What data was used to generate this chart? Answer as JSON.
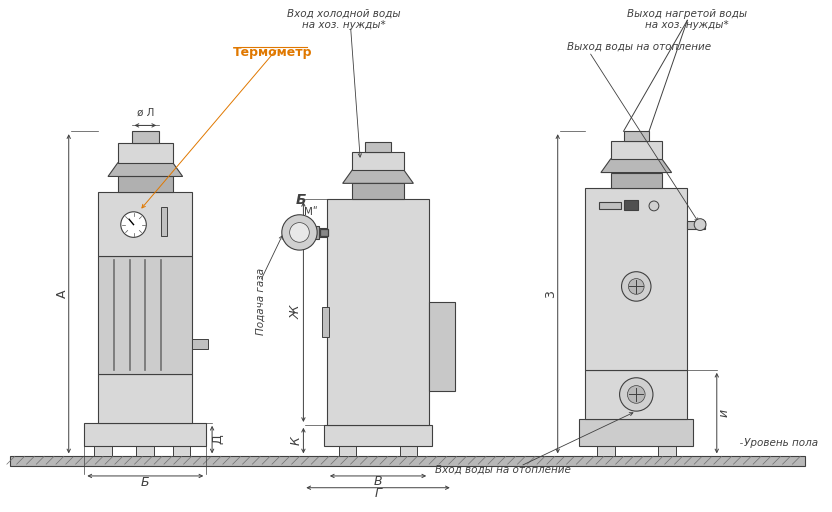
{
  "bg_color": "#ffffff",
  "boiler_fill": "#d8d8d8",
  "boiler_stroke": "#404040",
  "boiler_dark": "#909090",
  "ground_fill": "#b0b0b0",
  "annotations": {
    "thermometer_label": "Термометр",
    "podacha_gaza": "Подача газа",
    "vhod_holodnoy": "Вход холодной воды\nна хоз. нужды*",
    "vykhod_nagretoy": "Выход нагретой воды\nна хоз. нужды*",
    "vykhod_vody_otop": "Выход воды на отопление",
    "vkhod_vody_otop": "Вход воды на отопление",
    "uroven_pola": "Уровень пола",
    "dim_A": "A",
    "dim_B_bottom": "Б",
    "dim_B_label": "Б",
    "dim_D": "Д",
    "dim_Zh": "Ж",
    "dim_K": "К",
    "dim_V": "В",
    "dim_G": "Г",
    "dim_Z": "3",
    "dim_I": "и",
    "dim_L": "Л",
    "dim_M": "Мʺ",
    "phi_L": "ø Л"
  }
}
